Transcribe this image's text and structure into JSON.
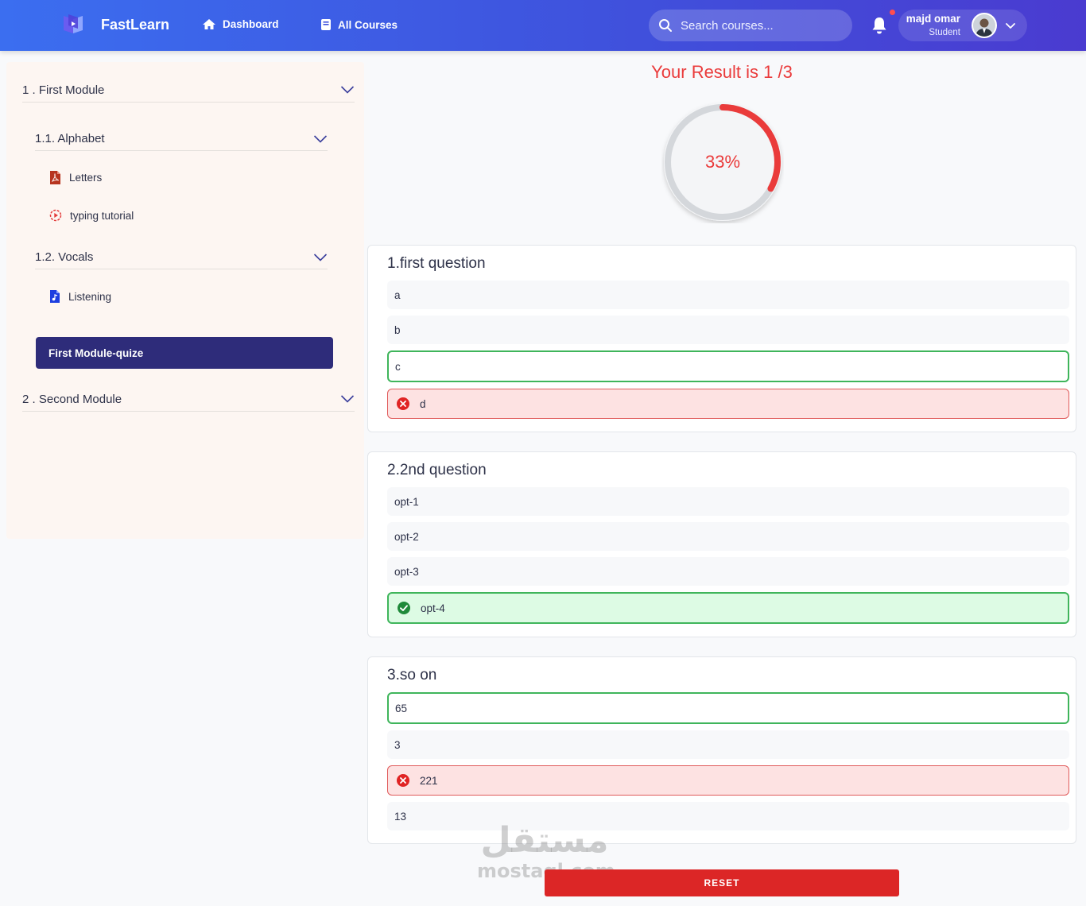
{
  "header": {
    "brand": "FastLearn",
    "nav": [
      {
        "label": "Dashboard",
        "icon": "home-icon"
      },
      {
        "label": "All Courses",
        "icon": "book-icon"
      }
    ],
    "search_placeholder": "Search courses...",
    "user": {
      "name": "majd omar",
      "role": "Student"
    }
  },
  "sidebar": {
    "modules": [
      {
        "label": "1 . First Module"
      },
      {
        "label": "2 . Second Module"
      }
    ],
    "submodules": [
      {
        "label": "1.1. Alphabet"
      },
      {
        "label": "1.2. Vocals"
      }
    ],
    "lessons": [
      {
        "label": "Letters",
        "icon": "pdf-file-icon"
      },
      {
        "label": "typing tutorial",
        "icon": "video-play-icon"
      },
      {
        "label": "Listening",
        "icon": "audio-file-icon"
      }
    ],
    "quiz_label": "First Module-quize"
  },
  "result": {
    "title": "Your Result is 1 /3",
    "percent_label": "33%",
    "fraction": 0.33,
    "accent": "#ea3b3b"
  },
  "questions": [
    {
      "title": "1.first question",
      "options": [
        {
          "label": "a",
          "state": "none"
        },
        {
          "label": "b",
          "state": "none"
        },
        {
          "label": "c",
          "state": "correct-answer"
        },
        {
          "label": "d",
          "state": "wrong"
        }
      ]
    },
    {
      "title": "2.2nd question",
      "options": [
        {
          "label": "opt-1",
          "state": "none"
        },
        {
          "label": "opt-2",
          "state": "none"
        },
        {
          "label": "opt-3",
          "state": "none"
        },
        {
          "label": "opt-4",
          "state": "right"
        }
      ]
    },
    {
      "title": "3.so on",
      "options": [
        {
          "label": "65",
          "state": "correct-answer"
        },
        {
          "label": "3",
          "state": "none"
        },
        {
          "label": "221",
          "state": "wrong"
        },
        {
          "label": "13",
          "state": "none"
        }
      ]
    }
  ],
  "reset_label": "RESET",
  "watermark": {
    "arabic": "مستقل",
    "latin": "mostaql.com"
  }
}
